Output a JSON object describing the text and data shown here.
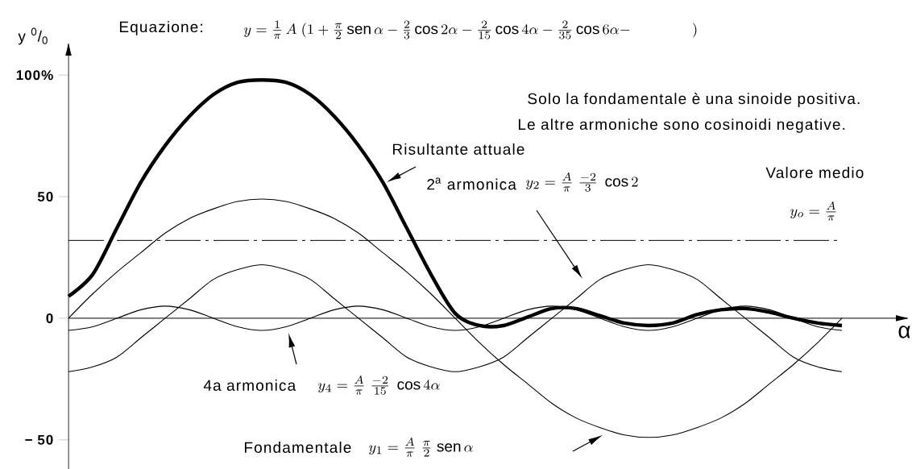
{
  "chart_data": {
    "type": "line",
    "title": "Equazione:",
    "subtitle": "y=\\frac{1}{\\pi}\\,A\\;(1+\\frac{\\pi}{2}\\,\\mathrm{sen}\\,\\alpha-\\frac{2}{3}\\cos 2\\alpha-\\frac{2}{15}\\cos 4\\alpha-\\frac{2}{35}\\cos 6\\alpha-\\qquad\\qquad)",
    "ylabel": "y $^{0}$/$_{0}$",
    "xlabel": "α",
    "categories": [
      null,
      null,
      null,
      null,
      null,
      null,
      null,
      null,
      null,
      null,
      null,
      null,
      null,
      null,
      null,
      null,
      null,
      null,
      null,
      null,
      null,
      null,
      null,
      null,
      null,
      null,
      null,
      null,
      null,
      null,
      null,
      null,
      null
    ],
    "series": [
      {
        "color": "#000000",
        "values": [
          9,
          18,
          37,
          56,
          71,
          83,
          92,
          97,
          98,
          97,
          92,
          83,
          71,
          56,
          37,
          18,
          2,
          -3,
          -3,
          0.5,
          4,
          4,
          1,
          -2,
          -3,
          -2,
          1.5,
          3.5,
          4,
          2.5,
          0,
          -2,
          -3
        ]
      },
      {
        "color": "#000000",
        "values": [
          0,
          10,
          19,
          27,
          35,
          41,
          45,
          48,
          49,
          48,
          45,
          41,
          35,
          27,
          19,
          10,
          0,
          -10,
          -19,
          -27,
          -35,
          -41,
          -45,
          -48,
          -49,
          -48,
          -45,
          -41,
          -35,
          -27,
          -19,
          -10,
          0
        ]
      },
      {
        "color": "#000000",
        "values": [
          -22,
          -20,
          -16,
          -8,
          0,
          8,
          16,
          20,
          22,
          20,
          16,
          8,
          0,
          -8,
          -16,
          -20,
          -22,
          -20,
          -16,
          -8,
          0,
          8,
          16,
          20,
          22,
          20,
          16,
          8,
          0,
          -8,
          -16,
          -20,
          -22
        ]
      },
      {
        "color": "#000000",
        "values": [
          -5,
          -3.5,
          0,
          3.5,
          5,
          3.5,
          0,
          -3.5,
          -5,
          -3.5,
          0,
          3.5,
          5,
          3.5,
          0,
          -3.5,
          -5,
          -3.5,
          0,
          3.5,
          5,
          3.5,
          0,
          -3.5,
          -5,
          -3.5,
          0,
          3.5,
          5,
          3.5,
          0,
          -3.5,
          -5
        ]
      }
    ],
    "ylim": [
      -62,
      110
    ],
    "yticks": [
      {
        "value": 100,
        "label": "100%"
      },
      50,
      0,
      {
        "value": -50,
        "label": "− 50"
      }
    ],
    "ref_lines": [
      {
        "axis": "y",
        "value": 32,
        "label": "Valore medio",
        "line_style": "dashdot",
        "color": "#000000"
      }
    ],
    "annotations": [
      "Solo la fondamentale è una sinoide positiva.",
      "Le altre armoniche sono cosinoidi negative.",
      "Risultante attuale",
      "2$^{a}$ armonica",
      "y_2=\\frac{A}{\\pi}\\;\\frac{-2}{3}\\;\\cos 2",
      "y_o=\\frac{A}{\\pi}",
      "4a armonica",
      "y_4=\\frac{A}{\\pi}\\;\\frac{-2}{15}\\;\\cos 4\\alpha",
      "Fondamentale",
      "y_1=\\frac{A}{\\pi}\\;\\frac{\\pi}{2}\\;\\mathrm{sen}\\,\\alpha"
    ]
  }
}
